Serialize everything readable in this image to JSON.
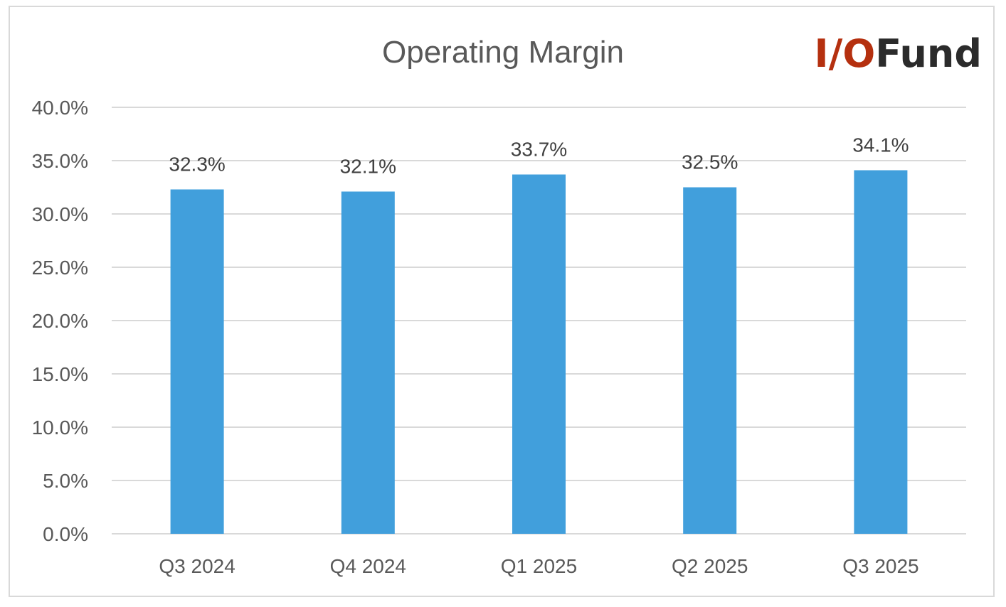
{
  "chart_data": {
    "type": "bar",
    "title": "Operating Margin",
    "categories": [
      "Q3 2024",
      "Q4 2024",
      "Q1 2025",
      "Q2 2025",
      "Q3 2025"
    ],
    "series": [
      {
        "values": [
          32.3,
          32.1,
          33.7,
          32.5,
          34.1
        ],
        "data_labels": [
          "32.3%",
          "32.1%",
          "33.7%",
          "32.5%",
          "34.1%"
        ],
        "color": "#419FDC"
      }
    ],
    "ylim": [
      0,
      40
    ],
    "y_ticks": [
      0,
      5,
      10,
      15,
      20,
      25,
      30,
      35,
      40
    ],
    "y_tick_labels": [
      "0.0%",
      "5.0%",
      "10.0%",
      "15.0%",
      "20.0%",
      "25.0%",
      "30.0%",
      "35.0%",
      "40.0%"
    ],
    "xlabel": "",
    "ylabel": "",
    "grid": true,
    "legend": "none"
  },
  "logo": {
    "text_accent": "I/O",
    "text_main": "Fund",
    "accent_color": "#B5300F",
    "main_color": "#2B2B2B"
  },
  "colors": {
    "grid": "#d9d9d9",
    "text": "#595959"
  }
}
